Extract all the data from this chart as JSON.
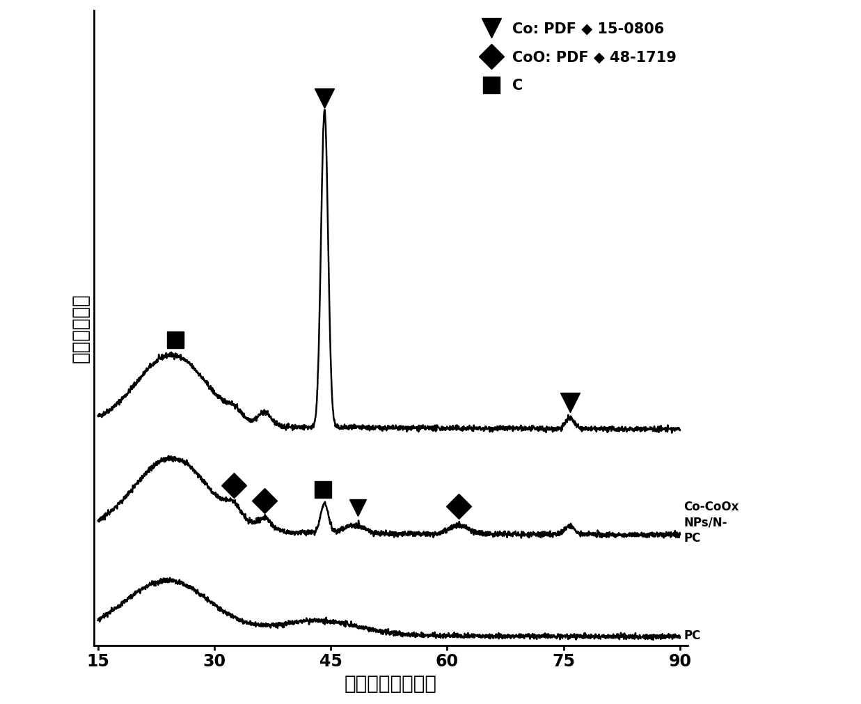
{
  "xlim": [
    15,
    90
  ],
  "xlabel": "二倍衍射角（度）",
  "ylabel": "相对衍射强度",
  "xlabel_fontsize": 20,
  "ylabel_fontsize": 20,
  "xticks": [
    15,
    30,
    45,
    60,
    75,
    90
  ],
  "background_color": "#ffffff",
  "legend_label_co": "Co: PDF ◆ 15-0806",
  "legend_label_coo": "CoO: PDF ◆ 48-1719",
  "legend_label_c": "C",
  "curve_top_label": "Co-CoOx\nNPs/N-\nPC",
  "curve_bottom_label": "PC",
  "noise_seed": 42
}
